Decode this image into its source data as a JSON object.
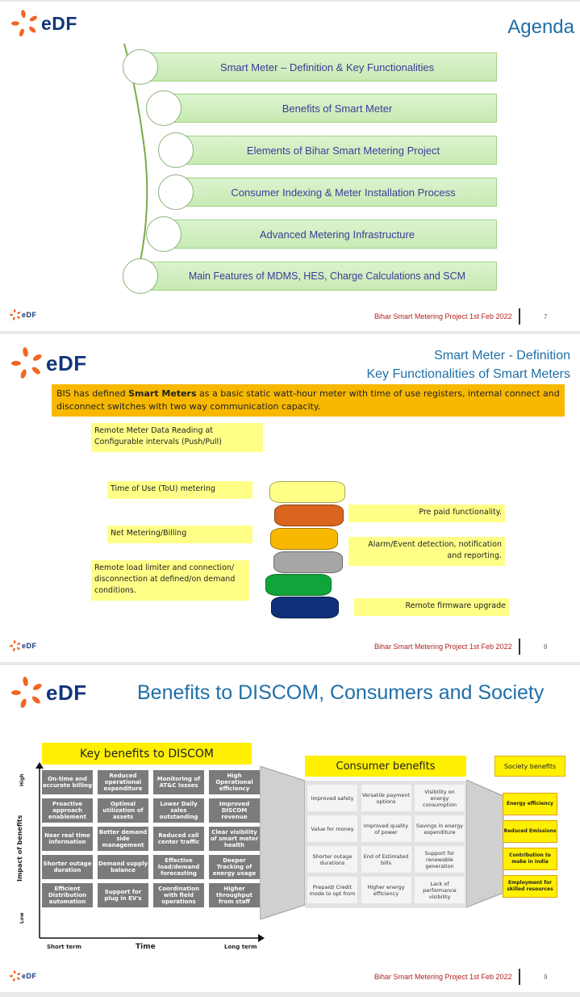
{
  "brand": {
    "name": "eDF",
    "footer": "Bihar Smart Metering Project 1st Feb 2022"
  },
  "slide1": {
    "title": "Agenda",
    "items": [
      "Smart Meter – Definition & Key Functionalities",
      "Benefits of Smart Meter",
      "Elements of Bihar Smart Metering Project",
      "Consumer Indexing & Meter Installation Process",
      "Advanced Metering Infrastructure",
      "Main Features of MDMS, HES, Charge Calculations and SCM"
    ],
    "page": "7"
  },
  "slide2": {
    "title_line1": "Smart Meter - Definition",
    "title_line2": "Key Functionalities of Smart Meters",
    "bis_pre": "BIS has defined ",
    "bis_bold": "Smart Meters",
    "bis_post": " as a basic static watt-hour meter with time of use registers, internal connect and disconnect switches with two way communication capacity.",
    "left_boxes": [
      "Remote Meter Data Reading at Configurable intervals (Push/Pull)",
      "Time of Use (ToU) metering",
      "Net Metering/Billing",
      "Remote load limiter and connection/ disconnection at defined/on demand conditions."
    ],
    "right_boxes": [
      "Pre paid functionality.",
      "Alarm/Event detection, notification and reporting.",
      "Remote firmware upgrade"
    ],
    "disk_colors": [
      "#ffff88",
      "#d9651e",
      "#f8b800",
      "#a6a6a6",
      "#10a53a",
      "#10307a"
    ],
    "page": "8"
  },
  "slide3": {
    "title": "Benefits to DISCOM, Consumers and Society",
    "discom_title": "Key benefits to DISCOM",
    "y_axis": "Impact of benefits",
    "y_high": "High",
    "y_low": "Low",
    "x_axis": "Time",
    "x_short": "Short term",
    "x_long": "Long term",
    "discom_grid": [
      [
        "On-time and accurate billing",
        "Reduced operational expenditure",
        "Monitoring of AT&C losses",
        "High Operational efficiency"
      ],
      [
        "Proactive approach enablement",
        "Optimal utilization of assets",
        "Lower Daily sales outstanding",
        "Improved DISCOM revenue"
      ],
      [
        "Near real time information",
        "Better demand side management",
        "Reduced call center traffic",
        "Clear visibility of smart meter health"
      ],
      [
        "Shorter outage duration",
        "Demand supply balance",
        "Effective load/demand forecasting",
        "Deeper Tracking of energy usage"
      ],
      [
        "Efficient Distribution automation",
        "Support for plug in EV's",
        "Coordination with field operations",
        "Higher throughput from staff"
      ]
    ],
    "consumer_title": "Consumer benefits",
    "consumer_grid": [
      [
        "Improved safety",
        "Versatile payment options",
        "Visibility on energy consumption"
      ],
      [
        "Value for money",
        "Improved quality of power",
        "Savings in energy expenditure"
      ],
      [
        "Shorter outage durations",
        "End of Estimated bills",
        "Support for renewable generation"
      ],
      [
        "Prepaid/ Credit mode to opt from",
        "Higher energy efficiency",
        "Lack of performance visibility"
      ]
    ],
    "society_title": "Society benefits",
    "society_items": [
      "Energy efficiency",
      "Reduced Emissions",
      "Contribution to make in India",
      "Employment for skilled resources"
    ],
    "page": "9"
  }
}
